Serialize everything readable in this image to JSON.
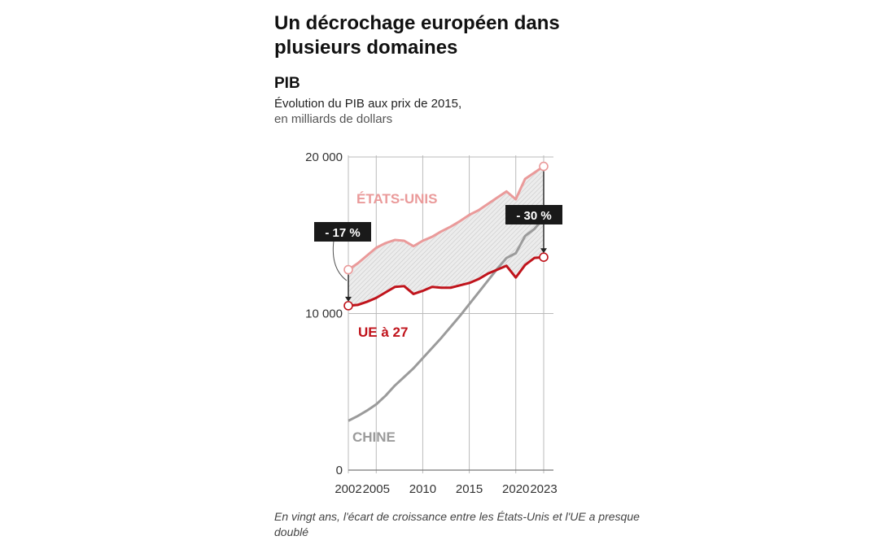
{
  "header": {
    "title": "Un décrochage européen dans plusieurs domaines",
    "subtitle": "PIB",
    "description": "Évolution du PIB aux prix de 2015,",
    "unit": "en milliards de dollars"
  },
  "footer": {
    "note": "En vingt ans, l'écart de croissance entre les États-Unis et l'UE a presque doublé"
  },
  "colors": {
    "us": "#ea9a9a",
    "eu": "#c0141c",
    "china": "#9b9b9b",
    "badge": "#1a1a1a",
    "grid": "#bbbbbb"
  },
  "chart_data": {
    "type": "line",
    "x_ticks": [
      "2002",
      "2005",
      "2010",
      "2015",
      "2020",
      "2023"
    ],
    "y_ticks": [
      "0",
      "10 000",
      "20 000"
    ],
    "xlim": [
      2002,
      2023
    ],
    "ylim": [
      0,
      20000
    ],
    "grid": true,
    "series": [
      {
        "key": "us",
        "name": "ÉTATS-UNIS",
        "x": [
          2002,
          2003,
          2004,
          2005,
          2006,
          2007,
          2008,
          2009,
          2010,
          2011,
          2012,
          2013,
          2014,
          2015,
          2016,
          2017,
          2018,
          2019,
          2020,
          2021,
          2022,
          2023
        ],
        "values": [
          12800,
          13200,
          13700,
          14200,
          14500,
          14700,
          14650,
          14300,
          14650,
          14900,
          15250,
          15550,
          15900,
          16300,
          16600,
          17000,
          17400,
          17800,
          17300,
          18600,
          19000,
          19400
        ]
      },
      {
        "key": "eu",
        "name": "UE à 27",
        "x": [
          2002,
          2003,
          2004,
          2005,
          2006,
          2007,
          2008,
          2009,
          2010,
          2011,
          2012,
          2013,
          2014,
          2015,
          2016,
          2017,
          2018,
          2019,
          2020,
          2021,
          2022,
          2023
        ],
        "values": [
          10500,
          10550,
          10750,
          11000,
          11350,
          11700,
          11750,
          11250,
          11450,
          11700,
          11650,
          11650,
          11800,
          11950,
          12200,
          12550,
          12800,
          13050,
          12300,
          13100,
          13550,
          13600
        ]
      },
      {
        "key": "china",
        "name": "CHINE",
        "x": [
          2002,
          2003,
          2004,
          2005,
          2006,
          2007,
          2008,
          2009,
          2010,
          2011,
          2012,
          2013,
          2014,
          2015,
          2016,
          2017,
          2018,
          2019,
          2020,
          2021,
          2022,
          2023
        ],
        "values": [
          3150,
          3450,
          3800,
          4200,
          4750,
          5400,
          5950,
          6500,
          7150,
          7800,
          8450,
          9150,
          9850,
          10600,
          11350,
          12100,
          12850,
          13550,
          13850,
          14950,
          15400,
          16100
        ]
      }
    ],
    "annotations": [
      {
        "label": "- 17 %",
        "year": 2002
      },
      {
        "label": "- 30 %",
        "year": 2023
      }
    ]
  }
}
